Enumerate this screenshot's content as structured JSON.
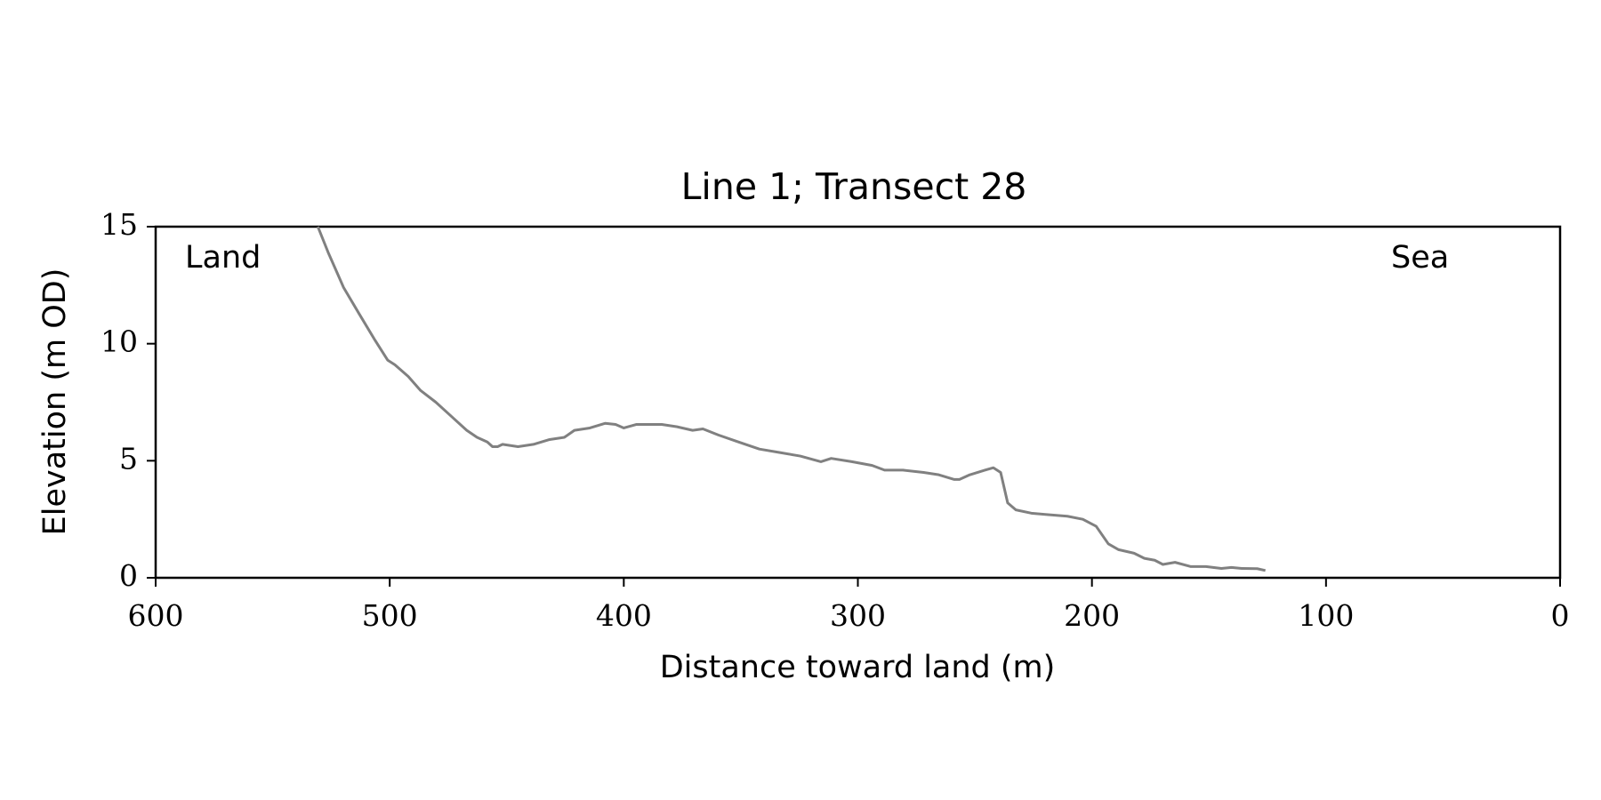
{
  "chart_data": {
    "type": "line",
    "title": "Line 1; Transect 28",
    "x_label": "Distance toward land (m)",
    "y_label": "Elevation (m OD)",
    "annotations": [
      "Land",
      "Sea"
    ],
    "xlim": [
      600,
      0
    ],
    "ylim": [
      0,
      15
    ],
    "xticks": [
      600,
      500,
      400,
      300,
      200,
      100,
      0
    ],
    "yticks": [
      0,
      5,
      10,
      15
    ],
    "grid": false,
    "series": [
      {
        "name": "Transect 28",
        "color": "#808080",
        "x": [
          530.7,
          526.3,
          519.7,
          513.2,
          506.6,
          500.9,
          497.8,
          492.1,
          486.8,
          480.3,
          473.7,
          467.1,
          462.7,
          458.3,
          456.1,
          453.9,
          451.8,
          445.2,
          438.6,
          432.0,
          425.4,
          421.1,
          414.5,
          407.9,
          403.5,
          400.0,
          394.7,
          383.8,
          377.2,
          370.6,
          366.2,
          359.6,
          350.9,
          342.1,
          333.3,
          324.6,
          315.8,
          311.4,
          302.6,
          293.9,
          288.6,
          280.7,
          271.9,
          265.4,
          258.8,
          256.6,
          252.2,
          245.6,
          242.1,
          239.0,
          236.0,
          232.5,
          225.9,
          219.3,
          210.5,
          203.9,
          198.2,
          193.0,
          188.6,
          182.0,
          177.6,
          173.2,
          169.7,
          164.5,
          157.9,
          151.3,
          144.7,
          140.4,
          136.0,
          129.4,
          125.9
        ],
        "values": [
          15.0,
          13.9,
          12.4,
          11.3,
          10.2,
          9.3,
          9.1,
          8.6,
          8.0,
          7.5,
          6.9,
          6.3,
          6.0,
          5.8,
          5.6,
          5.6,
          5.7,
          5.6,
          5.7,
          5.9,
          6.0,
          6.3,
          6.4,
          6.6,
          6.55,
          6.4,
          6.55,
          6.55,
          6.45,
          6.3,
          6.36,
          6.1,
          5.8,
          5.5,
          5.35,
          5.2,
          4.96,
          5.1,
          4.96,
          4.8,
          4.6,
          4.6,
          4.5,
          4.4,
          4.2,
          4.2,
          4.4,
          4.6,
          4.7,
          4.5,
          3.2,
          2.9,
          2.76,
          2.7,
          2.63,
          2.5,
          2.2,
          1.45,
          1.2,
          1.05,
          0.83,
          0.75,
          0.57,
          0.66,
          0.48,
          0.48,
          0.4,
          0.44,
          0.4,
          0.39,
          0.31
        ]
      }
    ]
  }
}
